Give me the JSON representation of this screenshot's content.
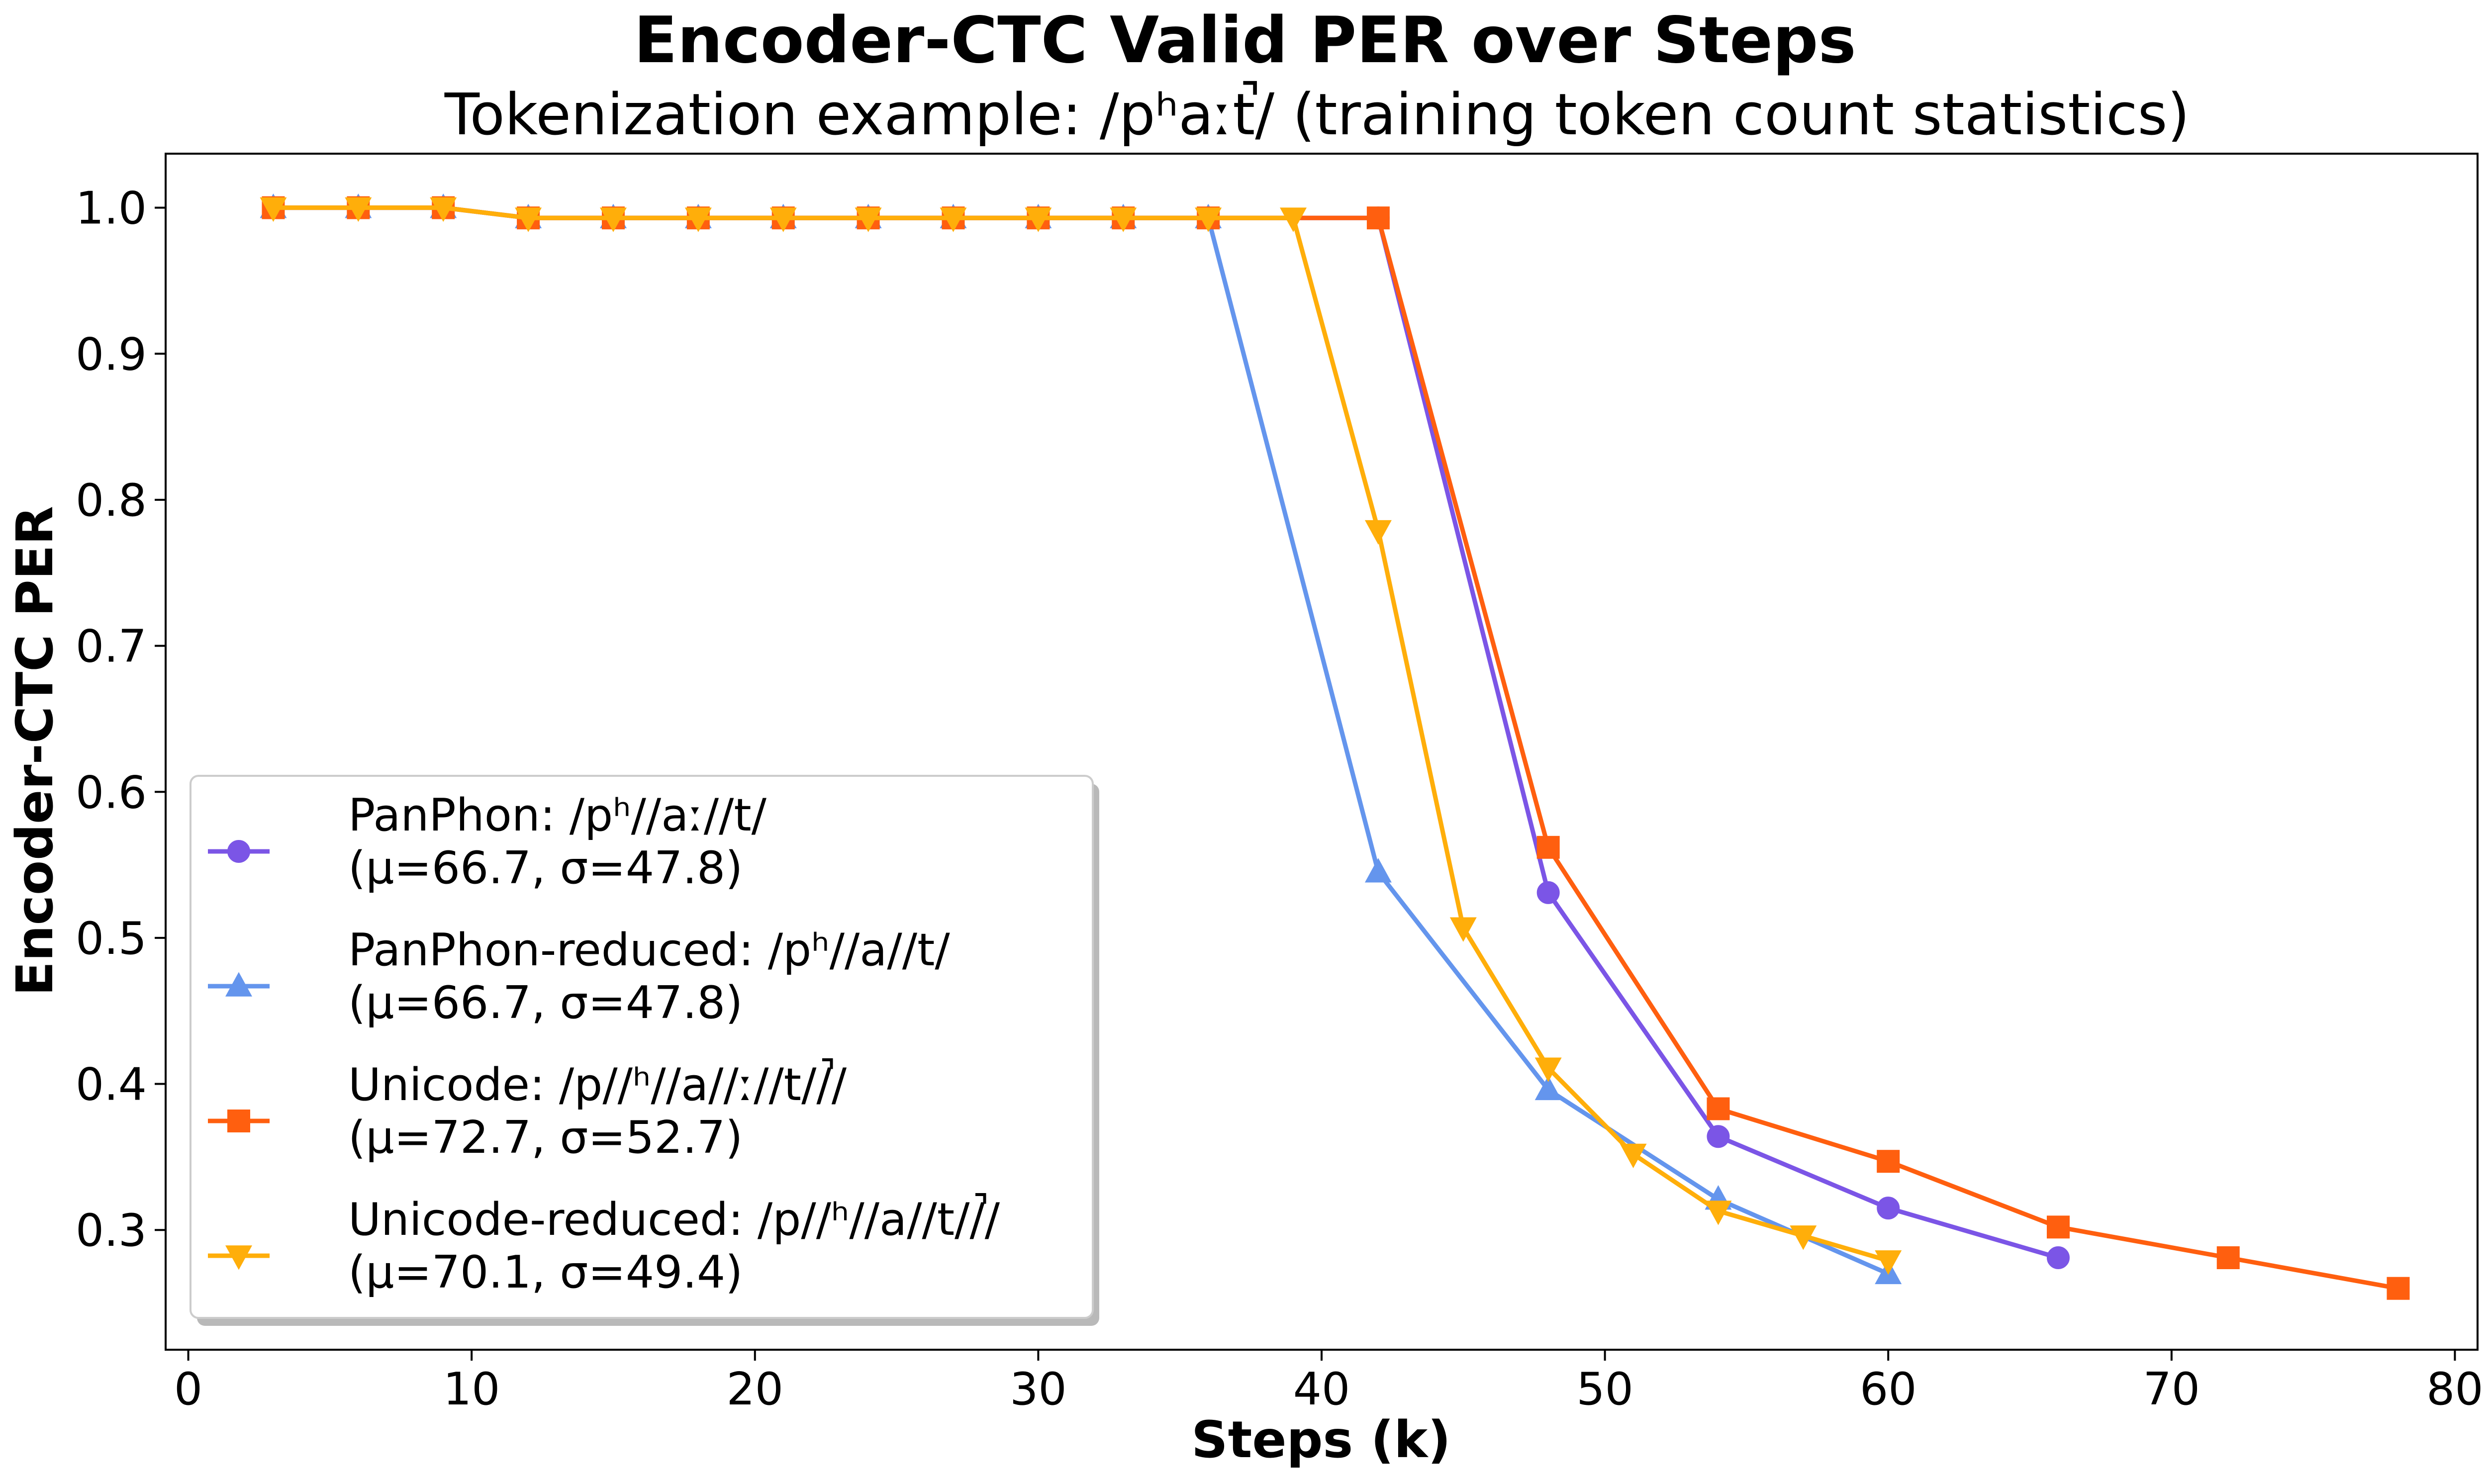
{
  "chart_data": {
    "type": "line",
    "title": "Encoder-CTC Valid PER over Steps",
    "subtitle": "Tokenization example: /pʰaːt̚/ (training token count statistics)",
    "xlabel": "Steps (k)",
    "ylabel": "Encoder-CTC PER",
    "xlim": [
      -0.8,
      80.8
    ],
    "ylim": [
      0.218,
      1.037
    ],
    "xticks": [
      0,
      10,
      20,
      30,
      40,
      50,
      60,
      70,
      80
    ],
    "xtick_labels": [
      "0",
      "10",
      "20",
      "30",
      "40",
      "50",
      "60",
      "70",
      "80"
    ],
    "yticks": [
      0.3,
      0.4,
      0.5,
      0.6,
      0.7,
      0.8,
      0.9,
      1.0
    ],
    "ytick_labels": [
      "0.3",
      "0.4",
      "0.5",
      "0.6",
      "0.7",
      "0.8",
      "0.9",
      "1.0"
    ],
    "grid": false,
    "legend_position": "lower-left",
    "series": [
      {
        "name": "PanPhon: /pʰ//aː//t/",
        "stats": "(μ=66.7, σ=47.8)",
        "color": "#7b55e6",
        "marker": "circle",
        "x": [
          3,
          6,
          9,
          12,
          15,
          18,
          21,
          24,
          27,
          30,
          33,
          36,
          42,
          48,
          54,
          60,
          66
        ],
        "y": [
          1.0,
          1.0,
          1.0,
          0.993,
          0.993,
          0.993,
          0.993,
          0.993,
          0.993,
          0.993,
          0.993,
          0.993,
          0.993,
          0.531,
          0.364,
          0.315,
          0.281
        ]
      },
      {
        "name": "PanPhon-reduced: /pʰ//a//t/",
        "stats": "(μ=66.7, σ=47.8)",
        "color": "#6495ed",
        "marker": "triangle-up",
        "x": [
          3,
          6,
          9,
          12,
          15,
          18,
          21,
          24,
          27,
          30,
          33,
          36,
          42,
          48,
          54,
          60
        ],
        "y": [
          1.0,
          1.0,
          1.0,
          0.993,
          0.993,
          0.993,
          0.993,
          0.993,
          0.993,
          0.993,
          0.993,
          0.993,
          0.545,
          0.396,
          0.321,
          0.27
        ]
      },
      {
        "name": "Unicode: /p//ʰ//a//ː//t//̚/",
        "stats": "(μ=72.7, σ=52.7)",
        "color": "#ff5f0f",
        "marker": "square",
        "x": [
          3,
          6,
          9,
          12,
          15,
          18,
          21,
          24,
          27,
          30,
          33,
          36,
          42,
          48,
          54,
          60,
          66,
          72,
          78
        ],
        "y": [
          1.0,
          1.0,
          1.0,
          0.993,
          0.993,
          0.993,
          0.993,
          0.993,
          0.993,
          0.993,
          0.993,
          0.993,
          0.993,
          0.562,
          0.383,
          0.347,
          0.302,
          0.281,
          0.26
        ]
      },
      {
        "name": "Unicode-reduced: /p//ʰ//a//t//̚/",
        "stats": "(μ=70.1, σ=49.4)",
        "color": "#ffae0a",
        "marker": "triangle-down",
        "x": [
          3,
          6,
          9,
          12,
          15,
          18,
          21,
          24,
          27,
          30,
          33,
          36,
          39,
          42,
          45,
          48,
          51,
          54,
          57,
          60
        ],
        "y": [
          1.0,
          1.0,
          1.0,
          0.993,
          0.993,
          0.993,
          0.993,
          0.993,
          0.993,
          0.993,
          0.993,
          0.993,
          0.993,
          0.779,
          0.507,
          0.411,
          0.352,
          0.313,
          0.296,
          0.279
        ]
      }
    ]
  }
}
